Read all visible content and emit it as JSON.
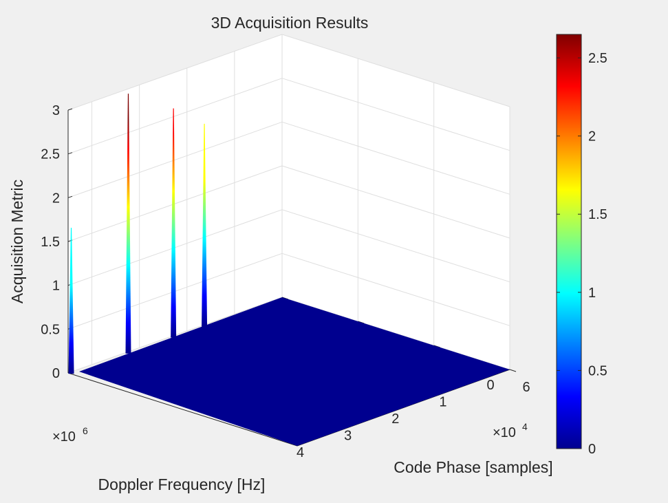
{
  "chart_data": {
    "type": "surface",
    "title": "3D Acquisition Results",
    "xlabel": "Code Phase [samples]",
    "ylabel": "Doppler Frequency [Hz]",
    "zlabel": "Acquisition Metric",
    "x_exponent": "×10",
    "x_exponent_power": "4",
    "y_exponent": "×10",
    "y_exponent_power": "6",
    "xlim": [
      0,
      6
    ],
    "ylim": [
      0,
      4.5
    ],
    "zlim": [
      0,
      3
    ],
    "x_ticks": [
      "0",
      "2",
      "4",
      "6"
    ],
    "y_ticks": [
      "0",
      "1",
      "2",
      "3",
      "4"
    ],
    "z_ticks": [
      "0",
      "0.5",
      "1",
      "1.5",
      "2",
      "2.5",
      "3"
    ],
    "colormap": "jet",
    "surface_base_color": "#00008f",
    "colorbar": {
      "limits": [
        0,
        2.65
      ],
      "ticks": [
        "0",
        "0.5",
        "1",
        "1.5",
        "2",
        "2.5"
      ]
    },
    "peaks": [
      {
        "x": 0.02,
        "y": 4.45,
        "z": 1.65
      },
      {
        "x": 0.02,
        "y": 3.25,
        "z": 2.95
      },
      {
        "x": 0.02,
        "y": 2.3,
        "z": 2.6
      },
      {
        "x": 0.02,
        "y": 1.65,
        "z": 2.3
      },
      {
        "x": 0.02,
        "y": 0.05,
        "z": 0.05
      }
    ],
    "grid": true,
    "view": "3d"
  }
}
